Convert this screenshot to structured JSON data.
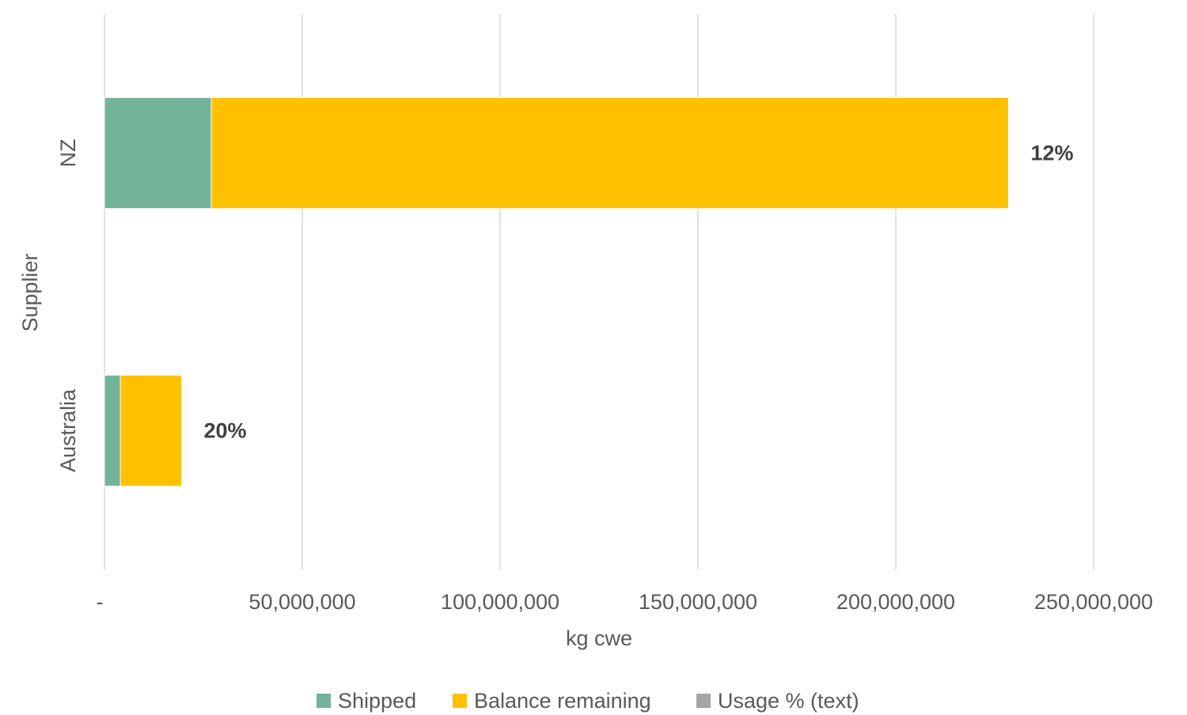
{
  "chart_data": {
    "type": "bar",
    "orientation": "horizontal",
    "stacked": true,
    "categories": [
      "NZ",
      "Australia"
    ],
    "series": [
      {
        "name": "Shipped",
        "color": "#73b39a",
        "values": [
          27000000,
          4000000
        ]
      },
      {
        "name": "Balance remaining",
        "color": "#ffc000",
        "values": [
          201500000,
          15500000
        ]
      },
      {
        "name": "Usage % (text)",
        "color": "#a5a5a5",
        "values": [
          0,
          0
        ]
      }
    ],
    "data_labels": [
      "12%",
      "20%"
    ],
    "xlabel": "kg cwe",
    "ylabel": "Supplier",
    "xlim": [
      0,
      250000000
    ],
    "x_ticks": [
      0,
      50000000,
      100000000,
      150000000,
      200000000,
      250000000
    ],
    "x_tick_labels": [
      "-",
      "50,000,000",
      "100,000,000",
      "150,000,000",
      "200,000,000",
      "250,000,000"
    ],
    "grid": "vertical",
    "legend_position": "bottom"
  }
}
